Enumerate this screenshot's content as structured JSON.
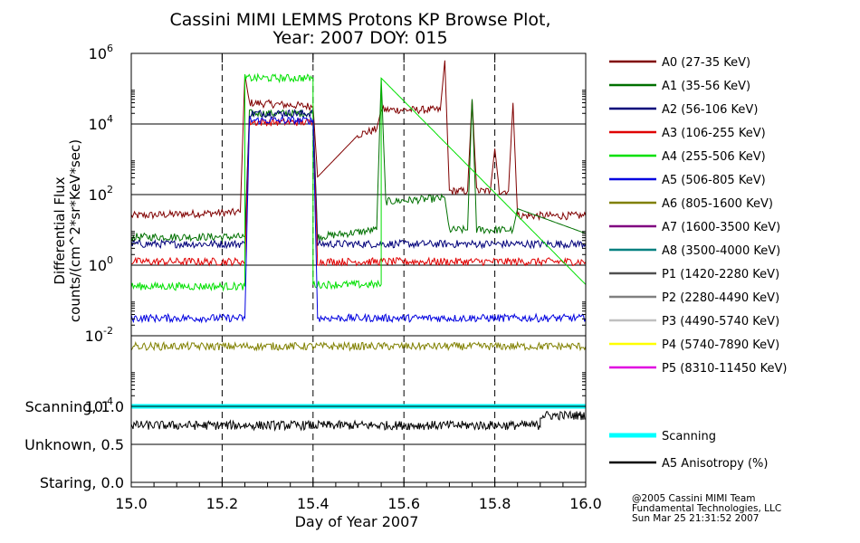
{
  "chart_data": {
    "type": "line",
    "title": "Cassini MIMI LEMMS Protons KP Browse Plot,",
    "subtitle": "Year: 2007 DOY: 015",
    "xlabel": "Day of Year 2007",
    "ylabel": "Differential Flux",
    "ylabel2": "counts/(cm^2*sr*KeV*sec)",
    "xlim": [
      15.0,
      16.0
    ],
    "ylim_log10": [
      -4,
      6
    ],
    "x_ticks": [
      "15.0",
      "15.2",
      "15.4",
      "15.6",
      "15.8",
      "16.0"
    ],
    "x_tick_values": [
      15.0,
      15.2,
      15.4,
      15.6,
      15.8,
      16.0
    ],
    "y_ticks": [
      {
        "base": "10",
        "exp": "6",
        "log": 6
      },
      {
        "base": "10",
        "exp": "4",
        "log": 4
      },
      {
        "base": "10",
        "exp": "2",
        "log": 2
      },
      {
        "base": "10",
        "exp": "0",
        "log": 0
      },
      {
        "base": "10",
        "exp": "-2",
        "log": -2
      },
      {
        "base": "10",
        "exp": "-4",
        "log": -4
      }
    ],
    "dashed_day_marks": [
      15.2,
      15.4,
      15.6,
      15.8
    ],
    "series": [
      {
        "name": "A0 (27-35 KeV)",
        "color": "#800000",
        "x": [
          15.0,
          15.24,
          15.25,
          15.26,
          15.4,
          15.41,
          15.5,
          15.54,
          15.55,
          15.68,
          15.69,
          15.7,
          15.74,
          15.75,
          15.76,
          15.79,
          15.8,
          15.81,
          15.83,
          15.84,
          15.85,
          16.0
        ],
        "log10": [
          1.4,
          1.5,
          5.4,
          4.6,
          4.5,
          2.5,
          3.7,
          3.85,
          4.4,
          4.4,
          5.8,
          2.1,
          2.1,
          4.7,
          2.1,
          2.1,
          3.3,
          2.1,
          2.1,
          4.6,
          1.4,
          1.4
        ]
      },
      {
        "name": "A1 (35-56 KeV)",
        "color": "#007000",
        "x": [
          15.0,
          15.25,
          15.26,
          15.4,
          15.41,
          15.54,
          15.55,
          15.56,
          15.69,
          15.7,
          15.74,
          15.75,
          15.76,
          15.84,
          15.85,
          16.0
        ],
        "log10": [
          0.8,
          0.8,
          4.3,
          4.3,
          0.8,
          1.0,
          5.3,
          1.8,
          1.9,
          1.0,
          1.0,
          4.7,
          1.0,
          1.0,
          1.6,
          0.9
        ]
      },
      {
        "name": "A2 (56-106 KeV)",
        "color": "#00007a",
        "x": [
          15.0,
          15.25,
          15.26,
          15.4,
          15.41,
          16.0
        ],
        "log10": [
          0.6,
          0.6,
          4.3,
          4.3,
          0.6,
          0.6
        ]
      },
      {
        "name": "A3 (106-255 KeV)",
        "color": "#e00000",
        "x": [
          15.0,
          15.25,
          15.26,
          15.4,
          15.41,
          16.0
        ],
        "log10": [
          0.1,
          0.1,
          4.05,
          4.05,
          0.1,
          0.1
        ]
      },
      {
        "name": "A4 (255-506 KeV)",
        "color": "#00e000",
        "x": [
          15.0,
          15.25,
          15.25,
          15.4,
          15.4,
          15.55,
          15.55,
          16.0
        ],
        "log10": [
          -0.6,
          -0.6,
          5.3,
          5.3,
          -0.55,
          -0.55,
          5.3,
          -0.55
        ]
      },
      {
        "name": "A5 (506-805 KeV)",
        "color": "#0000e0",
        "x": [
          15.0,
          15.25,
          15.26,
          15.4,
          15.41,
          16.0
        ],
        "log10": [
          -1.5,
          -1.5,
          4.1,
          4.1,
          -1.5,
          -1.5
        ]
      },
      {
        "name": "A6 (805-1600 KeV)",
        "color": "#808000",
        "x": [
          15.0,
          15.25,
          15.4,
          16.0
        ],
        "log10": [
          -2.3,
          -2.3,
          -2.3,
          -2.3
        ]
      },
      {
        "name": "A7 (1600-3500 KeV)",
        "color": "#800080",
        "x": [],
        "log10": []
      },
      {
        "name": "A8 (3500-4000 KeV)",
        "color": "#008080",
        "x": [],
        "log10": []
      },
      {
        "name": "P1 (1420-2280 KeV)",
        "color": "#505050",
        "x": [],
        "log10": []
      },
      {
        "name": "P2 (2280-4490 KeV)",
        "color": "#808080",
        "x": [],
        "log10": []
      },
      {
        "name": "P3 (4490-5740 KeV)",
        "color": "#c0c0c0",
        "x": [],
        "log10": []
      },
      {
        "name": "P4 (5740-7890 KeV)",
        "color": "#ffff00",
        "x": [],
        "log10": []
      },
      {
        "name": "P5 (8310-11450 KeV)",
        "color": "#e000e0",
        "x": [],
        "log10": []
      }
    ],
    "lower_panel": {
      "y_labels": [
        "Scanning, 1.0",
        "Unknown, 0.5",
        "Staring, 0.0"
      ],
      "y_values": [
        1.0,
        0.5,
        0.0
      ],
      "series": [
        {
          "name": "Scanning",
          "color": "#00ffff",
          "x": [
            15.0,
            16.0
          ],
          "values": [
            1.0,
            1.0
          ]
        },
        {
          "name": "A5 Anisotropy (%)",
          "color": "#000000",
          "x": [
            15.0,
            15.9,
            15.9,
            16.0
          ],
          "values": [
            0.75,
            0.75,
            0.88,
            0.88
          ]
        }
      ]
    },
    "grid": "major y lines, dashed vertical lines at 15.2/15.4/15.6/15.8",
    "legend_position": "right"
  },
  "credit": {
    "line1": "@2005 Cassini MIMI Team",
    "line2": "Fundamental Technologies, LLC",
    "line3": "Sun Mar 25 21:31:52 2007"
  }
}
